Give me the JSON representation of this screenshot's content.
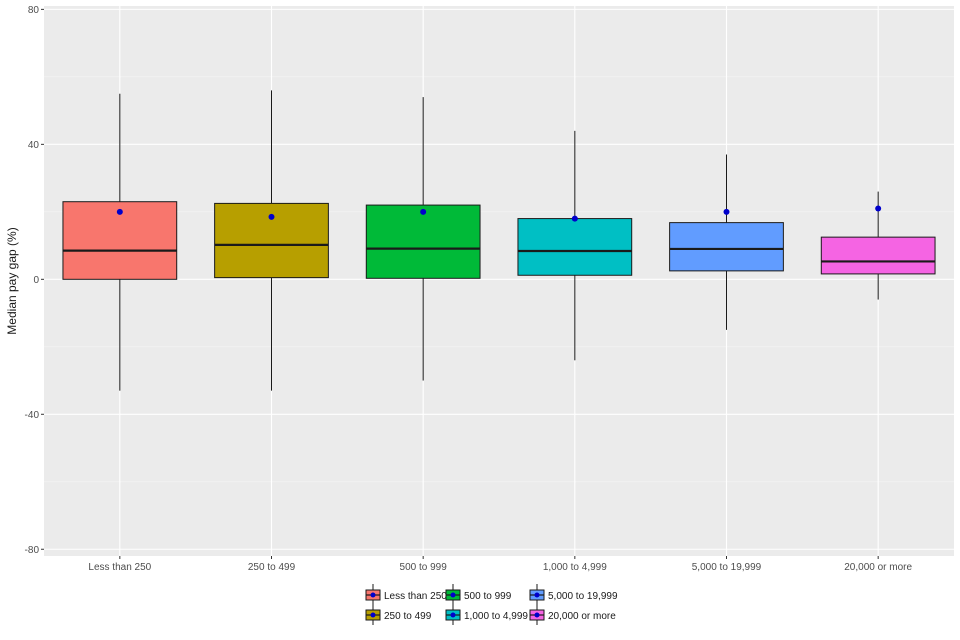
{
  "chart_data": {
    "type": "boxplot",
    "title": "",
    "xlabel": "",
    "ylabel": "Median pay gap (%)",
    "ylim": [
      -82,
      81
    ],
    "y_ticks": [
      -80,
      -40,
      0,
      40,
      80
    ],
    "y_tick_labels": [
      "-80",
      "-40",
      "0",
      "40",
      "80"
    ],
    "grid": true,
    "legend_position": "bottom",
    "categories": [
      "Less than 250",
      "250 to 499",
      "500 to 999",
      "1,000 to 4,999",
      "5,000 to 19,999",
      "20,000 or more"
    ],
    "colors": [
      "#F8766D",
      "#B79F00",
      "#00BA38",
      "#00BFC4",
      "#619CFF",
      "#F564E3"
    ],
    "mean_color": "#0000CC",
    "boxes": [
      {
        "category": "Less than 250",
        "lower_whisker": -33,
        "q1": 0,
        "median": 8.5,
        "q3": 23,
        "upper_whisker": 55,
        "mean": 20
      },
      {
        "category": "250 to 499",
        "lower_whisker": -33,
        "q1": 0.5,
        "median": 10.2,
        "q3": 22.5,
        "upper_whisker": 56,
        "mean": 18.5
      },
      {
        "category": "500 to 999",
        "lower_whisker": -30,
        "q1": 0.3,
        "median": 9.1,
        "q3": 22,
        "upper_whisker": 54,
        "mean": 20
      },
      {
        "category": "1,000 to 4,999",
        "lower_whisker": -24,
        "q1": 1.2,
        "median": 8.4,
        "q3": 18,
        "upper_whisker": 44,
        "mean": 18
      },
      {
        "category": "5,000 to 19,999",
        "lower_whisker": -15,
        "q1": 2.5,
        "median": 9.0,
        "q3": 16.8,
        "upper_whisker": 37,
        "mean": 20
      },
      {
        "category": "20,000 or more",
        "lower_whisker": -6,
        "q1": 1.6,
        "median": 5.3,
        "q3": 12.5,
        "upper_whisker": 26,
        "mean": 21
      }
    ],
    "legend": {
      "rows": [
        [
          "Less than 250",
          "500 to 999",
          "5,000 to 19,999"
        ],
        [
          "250 to 499",
          "1,000 to 4,999",
          "20,000 or more"
        ]
      ]
    }
  }
}
